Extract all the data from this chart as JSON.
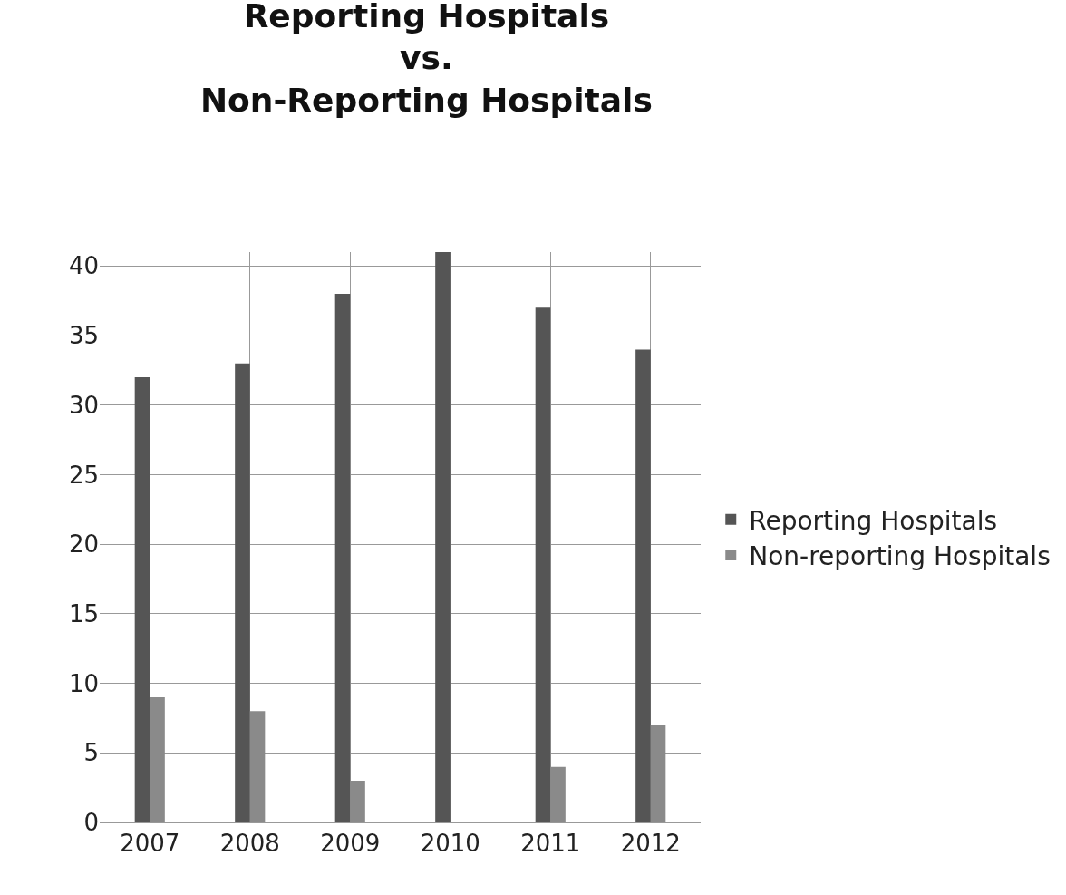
{
  "chart_data": {
    "type": "bar",
    "title": "Reporting Hospitals\nvs.\nNon-Reporting Hospitals",
    "categories": [
      "2007",
      "2008",
      "2009",
      "2010",
      "2011",
      "2012"
    ],
    "series": [
      {
        "name": "Reporting Hospitals",
        "color": "#555555",
        "values": [
          32,
          33,
          38,
          41,
          37,
          34
        ]
      },
      {
        "name": "Non-reporting Hospitals",
        "color": "#8a8a8a",
        "values": [
          9,
          8,
          3,
          0,
          4,
          7
        ]
      }
    ],
    "ylim": [
      0,
      41
    ],
    "yticks": [
      0,
      5,
      10,
      15,
      20,
      25,
      30,
      35,
      40
    ],
    "grid": true,
    "legend": "right"
  }
}
